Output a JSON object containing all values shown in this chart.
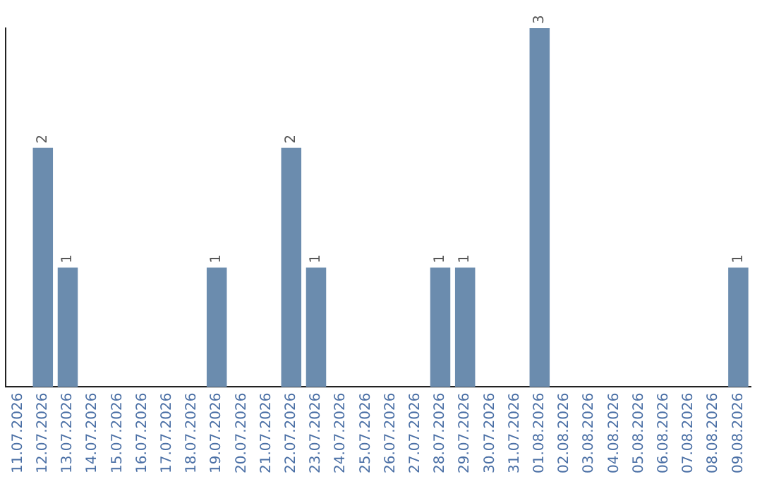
{
  "chart_data": {
    "type": "bar",
    "categories": [
      "11.07.2026",
      "12.07.2026",
      "13.07.2026",
      "14.07.2026",
      "15.07.2026",
      "16.07.2026",
      "17.07.2026",
      "18.07.2026",
      "19.07.2026",
      "20.07.2026",
      "21.07.2026",
      "22.07.2026",
      "23.07.2026",
      "24.07.2026",
      "25.07.2026",
      "26.07.2026",
      "27.07.2026",
      "28.07.2026",
      "29.07.2026",
      "30.07.2026",
      "31.07.2026",
      "01.08.2026",
      "02.08.2026",
      "03.08.2026",
      "04.08.2026",
      "05.08.2026",
      "06.08.2026",
      "07.08.2026",
      "08.08.2026",
      "09.08.2026"
    ],
    "values": [
      0,
      2,
      1,
      0,
      0,
      0,
      0,
      0,
      1,
      0,
      0,
      2,
      1,
      0,
      0,
      0,
      0,
      1,
      1,
      0,
      0,
      3,
      0,
      0,
      0,
      0,
      0,
      0,
      0,
      1
    ],
    "value_labels": [
      null,
      "2",
      "1",
      null,
      null,
      null,
      null,
      null,
      "1",
      null,
      null,
      "2",
      "1",
      null,
      null,
      null,
      null,
      "1",
      "1",
      null,
      null,
      "3",
      null,
      null,
      null,
      null,
      null,
      null,
      null,
      "1"
    ],
    "color": "#6b8cae",
    "tick_labels": "x",
    "grid": false,
    "legend": false
  }
}
